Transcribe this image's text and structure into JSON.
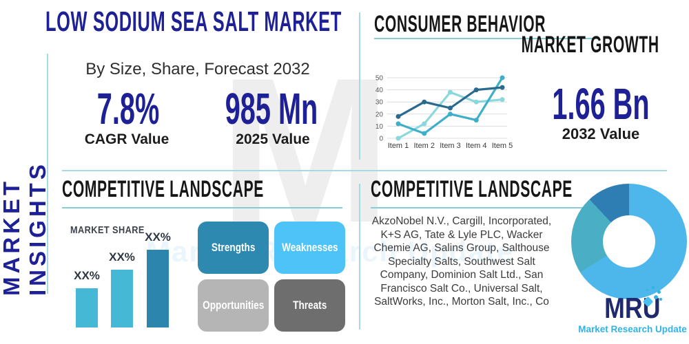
{
  "colors": {
    "navy": "#1e2096",
    "accent_line": "#a6d9e2",
    "underline": "#86cdd3",
    "heading_dark": "#161616",
    "companies_text": "#3b3b3b",
    "logo_navy": "#1e2a6d",
    "logo_cyan": "#31b3e4"
  },
  "sidebar": {
    "vertical_label": "MARKET INSIGHTS"
  },
  "header": {
    "title": "LOW SODIUM SEA SALT MARKET",
    "subtitle": "By Size, Share, Forecast 2032"
  },
  "stats": {
    "cagr": {
      "value": "7.8%",
      "label": "CAGR Value"
    },
    "y2025": {
      "value": "985 Mn",
      "label": "2025 Value"
    },
    "y2032": {
      "value": "1.66 Bn",
      "label": "2032 Value"
    }
  },
  "sections": {
    "consumer_behavior": "CONSUMER BEHAVIOR",
    "market_growth": "MARKET GROWTH",
    "competitive_landscape_left": "COMPETITIVE LANDSCAPE",
    "competitive_landscape_right": "COMPETITIVE LANDSCAPE",
    "market_share": "MARKET SHARE"
  },
  "swot": {
    "strengths": {
      "label": "Strengths",
      "color": "#2e89b0"
    },
    "weaknesses": {
      "label": "Weaknesses",
      "color": "#4dc3f7"
    },
    "opportunities": {
      "label": "Opportunities",
      "color": "#b5b5b5"
    },
    "threats": {
      "label": "Threats",
      "color": "#6e6e6e"
    }
  },
  "companies": {
    "text": "AkzoNobel N.V., Cargill, Incorporated, K+S AG, Tate & Lyle PLC, Wacker Chemie AG, Salins Group, Salthouse Specialty Salts, Southwest Salt Company, Dominion Salt Ltd., San Francisco Salt Co., Universal Salt, SaltWorks, Inc., Morton Salt, Inc., Co"
  },
  "brand": {
    "name": "MRU",
    "tagline": "Market Research Update"
  },
  "watermark": {
    "letter": "M",
    "text": "Market Research Update"
  },
  "chart_data": [
    {
      "id": "market-growth-trend",
      "type": "line",
      "title": "",
      "x": [
        "Item 1",
        "Item 2",
        "Item 3",
        "Item 4",
        "Item 5"
      ],
      "yticks": [
        0,
        10,
        20,
        30,
        40,
        50
      ],
      "ylim": [
        0,
        50
      ],
      "grid": true,
      "legend": "none",
      "series": [
        {
          "name": "series-light-cyan",
          "color": "#8ad8de",
          "values": [
            0,
            12,
            38,
            30,
            32
          ]
        },
        {
          "name": "series-teal",
          "color": "#3fafc9",
          "values": [
            12,
            4,
            20,
            15,
            50
          ]
        },
        {
          "name": "series-dark-blue",
          "color": "#2b6a8f",
          "values": [
            18,
            30,
            25,
            40,
            42
          ]
        }
      ]
    },
    {
      "id": "market-share",
      "type": "bar",
      "title": "MARKET SHARE",
      "categories": [
        "XX%",
        "XX%",
        "XX%"
      ],
      "values_relative": [
        0.5,
        0.74,
        1.0
      ],
      "bar_colors": [
        "#45b8d6",
        "#45b8d6",
        "#2b85ad"
      ],
      "note": "bar values shown only as XX% placeholders in source"
    },
    {
      "id": "regional-share-donut",
      "type": "pie",
      "donut": true,
      "slices": [
        {
          "name": "slice-light-blue",
          "color": "#4db7ec",
          "percent": 66
        },
        {
          "name": "slice-teal",
          "color": "#4aafc5",
          "percent": 22
        },
        {
          "name": "slice-dark-blue",
          "color": "#2e7eb3",
          "percent": 12
        }
      ]
    }
  ]
}
